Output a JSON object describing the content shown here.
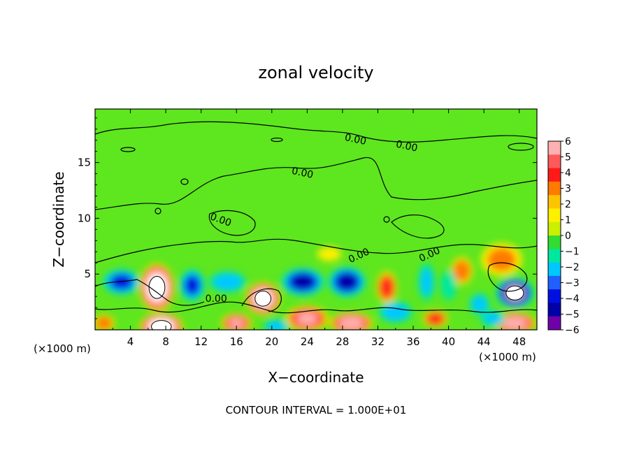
{
  "chart_data": {
    "type": "heatmap",
    "title": "zonal velocity",
    "xlabel": "X−coordinate",
    "ylabel": "Z−coordinate",
    "x_unit_left": "(×1000 m)",
    "x_unit_right": "(×1000 m)",
    "footer": "CONTOUR INTERVAL = 1.000E+01",
    "xlim": [
      0,
      50
    ],
    "ylim": [
      0,
      19.8
    ],
    "x_ticks": [
      4,
      8,
      12,
      16,
      20,
      24,
      28,
      32,
      36,
      40,
      44,
      48
    ],
    "y_ticks": [
      5,
      10,
      15
    ],
    "colorbar": {
      "ticks": [
        "6",
        "5",
        "4",
        "3",
        "2",
        "1",
        "0",
        "−1",
        "−2",
        "−3",
        "−4",
        "−5",
        "−6"
      ],
      "colors": [
        "#ffb0b0",
        "#ff5a5a",
        "#ff1a1a",
        "#ff7a00",
        "#ffc400",
        "#fff000",
        "#c8f000",
        "#32dc32",
        "#00e8a0",
        "#00c8ff",
        "#2060ff",
        "#0010e0",
        "#0000a8",
        "#7000a8"
      ]
    },
    "contour_labels": [
      {
        "text": "0.00",
        "x": 29.4,
        "z": 16.8
      },
      {
        "text": "0.00",
        "x": 35.2,
        "z": 16.2
      },
      {
        "text": "0.00",
        "x": 23.4,
        "z": 13.8
      },
      {
        "text": "0.00",
        "x": 14.1,
        "z": 9.6
      },
      {
        "text": "0.00",
        "x": 30.0,
        "z": 6.4
      },
      {
        "text": "0.00",
        "x": 38.0,
        "z": 6.5
      },
      {
        "text": "0.00",
        "x": 13.7,
        "z": 2.5
      }
    ],
    "anomalies": [
      {
        "x": 7.0,
        "z": 3.8,
        "rx": 2.0,
        "rz": 2.2,
        "v": 9
      },
      {
        "x": 7.5,
        "z": 0.3,
        "rx": 2.5,
        "rz": 1.2,
        "v": 9
      },
      {
        "x": 19.0,
        "z": 2.8,
        "rx": 2.0,
        "rz": 1.5,
        "v": 8
      },
      {
        "x": 16.0,
        "z": 0.6,
        "rx": 1.8,
        "rz": 0.9,
        "v": 6
      },
      {
        "x": 24.0,
        "z": 1.0,
        "rx": 2.5,
        "rz": 1.2,
        "v": 6
      },
      {
        "x": 29.0,
        "z": 0.6,
        "rx": 2.5,
        "rz": 1.0,
        "v": 7
      },
      {
        "x": 33.0,
        "z": 3.8,
        "rx": 1.2,
        "rz": 1.5,
        "v": 5
      },
      {
        "x": 38.5,
        "z": 1.0,
        "rx": 1.5,
        "rz": 0.8,
        "v": 5
      },
      {
        "x": 41.5,
        "z": 5.3,
        "rx": 1.3,
        "rz": 1.3,
        "v": 4
      },
      {
        "x": 46.0,
        "z": 6.3,
        "rx": 2.5,
        "rz": 1.6,
        "v": 3
      },
      {
        "x": 47.5,
        "z": 0.6,
        "rx": 2.5,
        "rz": 1.0,
        "v": 7
      },
      {
        "x": 1.0,
        "z": 0.6,
        "rx": 1.3,
        "rz": 0.8,
        "v": 4
      },
      {
        "x": 26.5,
        "z": 6.8,
        "rx": 1.5,
        "rz": 0.7,
        "v": 2.5
      },
      {
        "x": 3.0,
        "z": 4.3,
        "rx": 2.2,
        "rz": 1.2,
        "v": -5
      },
      {
        "x": 11.0,
        "z": 4.0,
        "rx": 1.5,
        "rz": 1.5,
        "v": -5
      },
      {
        "x": 15.0,
        "z": 4.3,
        "rx": 2.2,
        "rz": 1.0,
        "v": -4
      },
      {
        "x": 23.5,
        "z": 4.3,
        "rx": 2.5,
        "rz": 1.3,
        "v": -6
      },
      {
        "x": 28.5,
        "z": 4.3,
        "rx": 2.2,
        "rz": 1.4,
        "v": -6
      },
      {
        "x": 34.0,
        "z": 1.6,
        "rx": 2.0,
        "rz": 1.0,
        "v": -4
      },
      {
        "x": 37.5,
        "z": 4.3,
        "rx": 1.0,
        "rz": 1.8,
        "v": -3
      },
      {
        "x": 43.5,
        "z": 2.3,
        "rx": 1.2,
        "rz": 1.0,
        "v": -4
      },
      {
        "x": 47.5,
        "z": 3.3,
        "rx": 2.2,
        "rz": 1.4,
        "v": -9
      },
      {
        "x": 20.5,
        "z": 0.3,
        "rx": 1.5,
        "rz": 0.7,
        "v": -4
      },
      {
        "x": 45.0,
        "z": 1.0,
        "rx": 1.5,
        "rz": 0.8,
        "v": -3
      },
      {
        "x": 40.0,
        "z": 4.0,
        "rx": 1.0,
        "rz": 1.5,
        "v": -2
      }
    ]
  }
}
